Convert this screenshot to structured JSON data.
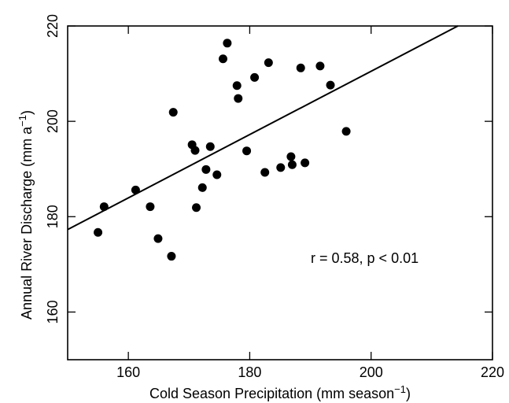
{
  "chart_data": {
    "type": "scatter",
    "xlabel": "Cold Season Precipitation (mm season",
    "xlabel_sup": "−1",
    "xlabel_end": ")",
    "ylabel": "Annual River Discharge (mm a",
    "ylabel_sup": "−1",
    "ylabel_end": ")",
    "xlim": [
      150,
      220
    ],
    "ylim": [
      150,
      220
    ],
    "xticks": [
      160,
      180,
      200,
      220
    ],
    "yticks": [
      160,
      180,
      200,
      220
    ],
    "xtick_labels": [
      "160",
      "180",
      "200",
      "220"
    ],
    "ytick_labels": [
      "160",
      "180",
      "200",
      "220"
    ],
    "grid": false,
    "annotation": "r = 0.58, p < 0.01",
    "points": [
      {
        "x": 155.0,
        "y": 176.7
      },
      {
        "x": 156.0,
        "y": 182.1
      },
      {
        "x": 161.2,
        "y": 185.6
      },
      {
        "x": 163.6,
        "y": 182.1
      },
      {
        "x": 164.9,
        "y": 175.4
      },
      {
        "x": 167.1,
        "y": 171.7
      },
      {
        "x": 167.4,
        "y": 201.9
      },
      {
        "x": 170.5,
        "y": 195.1
      },
      {
        "x": 171.0,
        "y": 193.9
      },
      {
        "x": 171.2,
        "y": 181.9
      },
      {
        "x": 172.2,
        "y": 186.1
      },
      {
        "x": 172.8,
        "y": 189.9
      },
      {
        "x": 173.5,
        "y": 194.7
      },
      {
        "x": 174.6,
        "y": 188.8
      },
      {
        "x": 175.6,
        "y": 213.1
      },
      {
        "x": 176.3,
        "y": 216.4
      },
      {
        "x": 177.9,
        "y": 207.5
      },
      {
        "x": 178.1,
        "y": 204.8
      },
      {
        "x": 179.5,
        "y": 193.8
      },
      {
        "x": 180.8,
        "y": 209.2
      },
      {
        "x": 182.5,
        "y": 189.3
      },
      {
        "x": 183.1,
        "y": 212.3
      },
      {
        "x": 185.1,
        "y": 190.3
      },
      {
        "x": 186.8,
        "y": 192.6
      },
      {
        "x": 187.0,
        "y": 190.9
      },
      {
        "x": 188.4,
        "y": 211.2
      },
      {
        "x": 189.1,
        "y": 191.3
      },
      {
        "x": 191.6,
        "y": 211.6
      },
      {
        "x": 193.3,
        "y": 207.6
      },
      {
        "x": 195.9,
        "y": 197.9
      }
    ],
    "fit_line": {
      "x": [
        150,
        214.3
      ],
      "y": [
        177.3,
        220
      ]
    }
  }
}
